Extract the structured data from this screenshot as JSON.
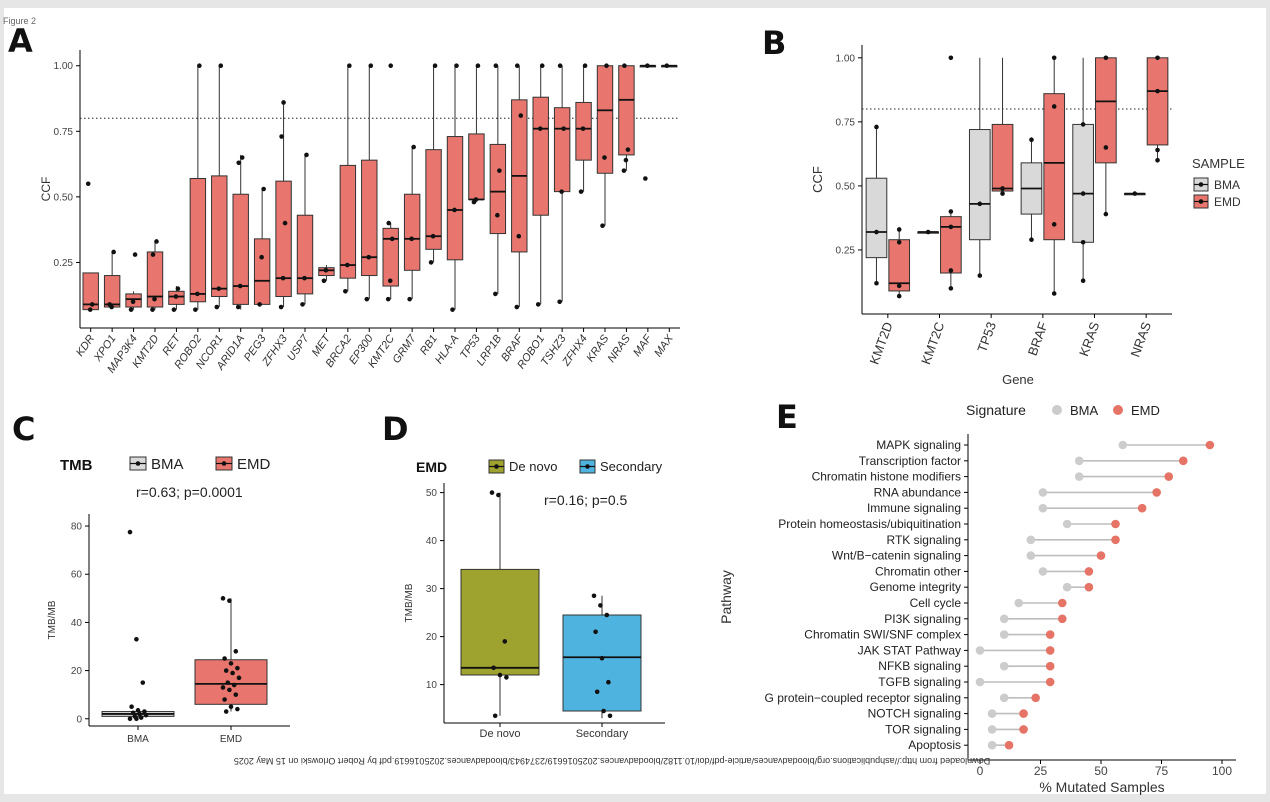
{
  "page_label": "Figure 2",
  "panels": [
    "A",
    "B",
    "C",
    "D",
    "E"
  ],
  "watermark": "Downloaded from http://ashpublications.org/bloodadvances/article-pdf/doi/10.1182/bloodadvances.2025016619/2374943/bloodadvances.2025016619.pdf by Robert Orlowski on 15 May 2025",
  "colors": {
    "emd": "#E8766E",
    "bma": "#D9D9D9",
    "de_novo": "#9EA22E",
    "secondary": "#4FB3DF",
    "bma_point": "#CCCCCC",
    "emd_point": "#E57466"
  },
  "chart_data": [
    {
      "panel": "A",
      "type": "box",
      "ylabel": "CCF",
      "ylim": [
        0,
        1.06
      ],
      "yticks": [
        "0.25",
        "0.50",
        "0.75",
        "1.00"
      ],
      "reference_line": 0.8,
      "categories": [
        "KDR",
        "XPO1",
        "MAP3K4",
        "KMT2D",
        "RET",
        "ROBO2",
        "NCOR1",
        "ARID1A",
        "PEG3",
        "ZFHX3",
        "USP7",
        "MET",
        "BRCA2",
        "EP300",
        "KMT2C",
        "GRM7",
        "RB1",
        "HLA-A",
        "TP53",
        "LRP1B",
        "BRAF",
        "ROBO1",
        "TSHZ3",
        "ZFHX4",
        "KRAS",
        "NRAS",
        "MAF",
        "MAX"
      ],
      "boxes": [
        {
          "q1": 0.07,
          "median": 0.09,
          "q3": 0.21,
          "min": 0.07,
          "max": 0.21,
          "points": [
            0.55,
            0.07,
            0.09
          ]
        },
        {
          "q1": 0.08,
          "median": 0.09,
          "q3": 0.2,
          "min": 0.08,
          "max": 0.29,
          "points": [
            0.09,
            0.08,
            0.29
          ]
        },
        {
          "q1": 0.08,
          "median": 0.11,
          "q3": 0.13,
          "min": 0.07,
          "max": 0.14,
          "points": [
            0.07,
            0.1,
            0.28
          ]
        },
        {
          "q1": 0.08,
          "median": 0.12,
          "q3": 0.29,
          "min": 0.07,
          "max": 0.33,
          "points": [
            0.07,
            0.11,
            0.33,
            0.28
          ]
        },
        {
          "q1": 0.09,
          "median": 0.12,
          "q3": 0.14,
          "min": 0.07,
          "max": 0.16,
          "points": [
            0.07,
            0.12,
            0.15
          ]
        },
        {
          "q1": 0.1,
          "median": 0.13,
          "q3": 0.57,
          "min": 0.07,
          "max": 1.0,
          "points": [
            0.07,
            0.13,
            1.0
          ]
        },
        {
          "q1": 0.12,
          "median": 0.15,
          "q3": 0.58,
          "min": 0.08,
          "max": 1.0,
          "points": [
            0.08,
            0.15,
            1.0
          ]
        },
        {
          "q1": 0.09,
          "median": 0.16,
          "q3": 0.51,
          "min": 0.07,
          "max": 0.66,
          "points": [
            0.08,
            0.16,
            0.65,
            0.63
          ]
        },
        {
          "q1": 0.09,
          "median": 0.18,
          "q3": 0.34,
          "min": 0.09,
          "max": 0.53,
          "points": [
            0.09,
            0.27,
            0.53
          ]
        },
        {
          "q1": 0.12,
          "median": 0.19,
          "q3": 0.56,
          "min": 0.08,
          "max": 0.86,
          "points": [
            0.08,
            0.19,
            0.4,
            0.73,
            0.86
          ]
        },
        {
          "q1": 0.13,
          "median": 0.19,
          "q3": 0.43,
          "min": 0.09,
          "max": 0.66,
          "points": [
            0.09,
            0.19,
            0.66
          ]
        },
        {
          "q1": 0.2,
          "median": 0.22,
          "q3": 0.23,
          "min": 0.18,
          "max": 0.24,
          "points": [
            0.18,
            0.22
          ]
        },
        {
          "q1": 0.19,
          "median": 0.24,
          "q3": 0.62,
          "min": 0.14,
          "max": 1.0,
          "points": [
            0.14,
            0.24,
            1.0
          ]
        },
        {
          "q1": 0.2,
          "median": 0.27,
          "q3": 0.64,
          "min": 0.11,
          "max": 1.0,
          "points": [
            0.11,
            0.27,
            1.0
          ]
        },
        {
          "q1": 0.16,
          "median": 0.34,
          "q3": 0.38,
          "min": 0.11,
          "max": 0.4,
          "points": [
            0.11,
            0.18,
            0.34,
            0.4,
            1.0
          ]
        },
        {
          "q1": 0.22,
          "median": 0.34,
          "q3": 0.51,
          "min": 0.11,
          "max": 0.69,
          "points": [
            0.11,
            0.34,
            0.69
          ]
        },
        {
          "q1": 0.3,
          "median": 0.35,
          "q3": 0.68,
          "min": 0.25,
          "max": 1.0,
          "points": [
            0.25,
            0.35,
            1.0
          ]
        },
        {
          "q1": 0.26,
          "median": 0.45,
          "q3": 0.73,
          "min": 0.07,
          "max": 1.0,
          "points": [
            0.07,
            0.45,
            1.0
          ]
        },
        {
          "q1": 0.49,
          "median": 0.49,
          "q3": 0.74,
          "min": 0.48,
          "max": 1.0,
          "points": [
            0.48,
            0.49,
            1.0
          ]
        },
        {
          "q1": 0.36,
          "median": 0.52,
          "q3": 0.7,
          "min": 0.13,
          "max": 1.0,
          "points": [
            0.13,
            0.43,
            0.6,
            1.0
          ]
        },
        {
          "q1": 0.29,
          "median": 0.58,
          "q3": 0.87,
          "min": 0.08,
          "max": 1.0,
          "points": [
            0.08,
            0.35,
            0.81,
            1.0
          ]
        },
        {
          "q1": 0.43,
          "median": 0.76,
          "q3": 0.88,
          "min": 0.09,
          "max": 1.0,
          "points": [
            0.09,
            0.76,
            1.0
          ]
        },
        {
          "q1": 0.52,
          "median": 0.76,
          "q3": 0.84,
          "min": 0.1,
          "max": 1.0,
          "points": [
            0.1,
            0.52,
            0.76,
            1.0
          ]
        },
        {
          "q1": 0.64,
          "median": 0.76,
          "q3": 0.86,
          "min": 0.52,
          "max": 1.0,
          "points": [
            0.52,
            0.76,
            1.0
          ]
        },
        {
          "q1": 0.59,
          "median": 0.83,
          "q3": 1.0,
          "min": 0.39,
          "max": 1.0,
          "points": [
            0.39,
            0.65,
            1.0
          ]
        },
        {
          "q1": 0.66,
          "median": 0.87,
          "q3": 1.0,
          "min": 0.6,
          "max": 1.0,
          "points": [
            0.6,
            0.64,
            0.68,
            1.0
          ]
        },
        {
          "q1": 1.0,
          "median": 1.0,
          "q3": 1.0,
          "min": 1.0,
          "max": 1.0,
          "points": [
            0.57,
            1.0
          ]
        },
        {
          "q1": 1.0,
          "median": 1.0,
          "q3": 1.0,
          "min": 1.0,
          "max": 1.0,
          "points": [
            1.0
          ]
        }
      ]
    },
    {
      "panel": "B",
      "type": "box",
      "xlabel": "Gene",
      "ylabel": "CCF",
      "ylim": [
        0,
        1.05
      ],
      "yticks": [
        "0.25",
        "0.50",
        "0.75",
        "1.00"
      ],
      "reference_line": 0.8,
      "legend_title": "SAMPLE",
      "legend": [
        "BMA",
        "EMD"
      ],
      "categories": [
        "KMT2D",
        "KMT2C",
        "TP53",
        "BRAF",
        "KRAS",
        "NRAS"
      ],
      "groups": [
        {
          "bma": {
            "q1": 0.22,
            "median": 0.32,
            "q3": 0.53,
            "min": 0.12,
            "max": 0.73,
            "points": [
              0.12,
              0.32,
              0.73
            ]
          },
          "emd": {
            "q1": 0.09,
            "median": 0.12,
            "q3": 0.29,
            "min": 0.07,
            "max": 0.33,
            "points": [
              0.07,
              0.11,
              0.28,
              0.33
            ]
          }
        },
        {
          "bma": {
            "q1": 0.32,
            "median": 0.32,
            "q3": 0.32,
            "min": 0.32,
            "max": 0.32,
            "points": [
              0.32
            ]
          },
          "emd": {
            "q1": 0.16,
            "median": 0.34,
            "q3": 0.38,
            "min": 0.1,
            "max": 0.4,
            "points": [
              0.1,
              0.17,
              0.34,
              0.4,
              1.0
            ]
          }
        },
        {
          "bma": {
            "q1": 0.29,
            "median": 0.43,
            "q3": 0.72,
            "min": 0.15,
            "max": 1.0,
            "points": [
              0.15,
              0.43
            ]
          },
          "emd": {
            "q1": 0.48,
            "median": 0.49,
            "q3": 0.74,
            "min": 0.47,
            "max": 1.0,
            "points": [
              0.47,
              0.49
            ]
          }
        },
        {
          "bma": {
            "q1": 0.39,
            "median": 0.49,
            "q3": 0.59,
            "min": 0.29,
            "max": 0.69,
            "points": [
              0.29,
              0.68
            ]
          },
          "emd": {
            "q1": 0.29,
            "median": 0.59,
            "q3": 0.86,
            "min": 0.08,
            "max": 1.0,
            "points": [
              0.08,
              0.35,
              0.81,
              1.0
            ]
          }
        },
        {
          "bma": {
            "q1": 0.28,
            "median": 0.47,
            "q3": 0.74,
            "min": 0.13,
            "max": 1.0,
            "points": [
              0.13,
              0.28,
              0.47,
              0.74
            ]
          },
          "emd": {
            "q1": 0.59,
            "median": 0.83,
            "q3": 1.0,
            "min": 0.39,
            "max": 1.0,
            "points": [
              0.39,
              0.65,
              1.0
            ]
          }
        },
        {
          "bma": {
            "q1": 0.47,
            "median": 0.47,
            "q3": 0.47,
            "min": 0.47,
            "max": 0.47,
            "points": [
              0.47
            ]
          },
          "emd": {
            "q1": 0.66,
            "median": 0.87,
            "q3": 1.0,
            "min": 0.6,
            "max": 1.0,
            "points": [
              0.6,
              0.64,
              0.87,
              1.0
            ]
          }
        }
      ]
    },
    {
      "panel": "C",
      "type": "box",
      "title": "TMB",
      "annotation": "r=0.63; p=0.0001",
      "ylabel": "TMB/MB",
      "ylim": [
        -3,
        85
      ],
      "yticks": [
        "0",
        "20",
        "40",
        "60",
        "80"
      ],
      "legend": [
        "BMA",
        "EMD"
      ],
      "categories": [
        "BMA",
        "EMD"
      ],
      "boxes": [
        {
          "q1": 1.0,
          "median": 2.0,
          "q3": 3.0,
          "min": 0.0,
          "max": 4.0,
          "points": [
            77.5,
            33.0,
            15.0,
            5.0,
            3.5,
            3.0,
            2.5,
            2.0,
            1.5,
            1.0,
            0.5,
            0.0,
            0.0
          ]
        },
        {
          "q1": 6.0,
          "median": 14.5,
          "q3": 24.5,
          "min": 3.0,
          "max": 50.0,
          "points": [
            50.0,
            49.0,
            28.0,
            25.0,
            23.0,
            21.0,
            20.0,
            19.0,
            17.0,
            15.0,
            14.0,
            13.0,
            12.0,
            10.0,
            8.0,
            5.0,
            4.0,
            3.0
          ]
        }
      ]
    },
    {
      "panel": "D",
      "type": "box",
      "title": "EMD",
      "annotation": "r=0.16; p=0.5",
      "ylabel": "TMB/MB",
      "ylim": [
        2,
        52
      ],
      "yticks": [
        "10",
        "20",
        "30",
        "40",
        "50"
      ],
      "legend": [
        "De novo",
        "Secondary"
      ],
      "categories": [
        "De novo",
        "Secondary"
      ],
      "boxes": [
        {
          "q1": 12.0,
          "median": 13.5,
          "q3": 34.0,
          "min": 3.5,
          "max": 50.0,
          "points": [
            50.0,
            49.5,
            19.0,
            13.5,
            12.0,
            11.5,
            3.5
          ]
        },
        {
          "q1": 4.5,
          "median": 15.7,
          "q3": 24.5,
          "min": 3.0,
          "max": 28.5,
          "points": [
            28.5,
            26.5,
            24.5,
            21.0,
            15.5,
            10.5,
            8.5,
            4.5,
            3.5
          ]
        }
      ]
    },
    {
      "panel": "E",
      "type": "dumbbell",
      "xlabel": "% Mutated Samples",
      "ylabel": "Pathway",
      "xlim": [
        0,
        100
      ],
      "xticks": [
        "0",
        "25",
        "50",
        "75",
        "100"
      ],
      "legend_title": "Signature",
      "legend": [
        "BMA",
        "EMD"
      ],
      "categories": [
        "MAPK signaling",
        "Transcription factor",
        "Chromatin histone modifiers",
        "RNA abundance",
        "Immune signaling",
        "Protein homeostasis/ubiquitination",
        "RTK signaling",
        "Wnt/B−catenin signaling",
        "Chromatin other",
        "Genome integrity",
        "Cell cycle",
        "PI3K signaling",
        "Chromatin SWI/SNF complex",
        "JAK STAT Pathway",
        "NFKB signaling",
        "TGFB signaling",
        "G protein−coupled receptor signaling",
        "NOTCH signaling",
        "TOR signaling",
        "Apoptosis"
      ],
      "series": [
        {
          "name": "BMA",
          "values": [
            59,
            41,
            41,
            26,
            26,
            36,
            21,
            21,
            26,
            36,
            16,
            10,
            10,
            0,
            10,
            0,
            10,
            5,
            5,
            5
          ]
        },
        {
          "name": "EMD",
          "values": [
            95,
            84,
            78,
            73,
            67,
            56,
            56,
            50,
            45,
            45,
            34,
            34,
            29,
            29,
            29,
            29,
            23,
            18,
            18,
            12
          ]
        }
      ]
    }
  ]
}
